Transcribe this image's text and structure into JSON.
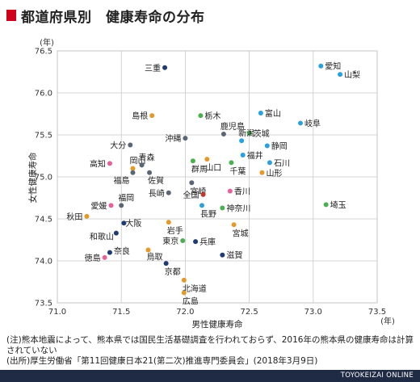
{
  "title": "都道府県別　健康寿命の分布",
  "accent_color": "#d0021b",
  "notes": {
    "line1": "(注)熊本地震によって、熊本県では国民生活基礎調査を行われておらず、2016年の熊本県の健康寿命は計算されていない",
    "line2": "(出所)厚生労働省「第11回健康日本21(第二次)推進専門委員会」(2018年3月9日)"
  },
  "footer": {
    "brand": "TOYOKEIZAI ONLINE",
    "bg_color": "#1f2a44"
  },
  "chart_data": {
    "type": "scatter",
    "title": "都道府県別　健康寿命の分布",
    "xlabel": "男性健康寿命",
    "ylabel": "女性健康寿命",
    "x_unit": "(年)",
    "y_unit": "(年)",
    "xlim": [
      71.0,
      73.5
    ],
    "ylim": [
      73.5,
      76.5
    ],
    "xticks": [
      "71.0",
      "71.5",
      "72.0",
      "72.5",
      "73.0",
      "73.5"
    ],
    "yticks": [
      "73.5",
      "74.0",
      "74.5",
      "75.0",
      "75.5",
      "76.0",
      "76.5"
    ],
    "grid": true,
    "points": [
      {
        "name": "三重",
        "x": 71.84,
        "y": 76.3,
        "color": "#1f3b73"
      },
      {
        "name": "愛知",
        "x": 73.06,
        "y": 76.32,
        "color": "#2aa1de"
      },
      {
        "name": "山梨",
        "x": 73.21,
        "y": 76.22,
        "color": "#2aa1de"
      },
      {
        "name": "富山",
        "x": 72.59,
        "y": 75.76,
        "color": "#2aa1de"
      },
      {
        "name": "島根",
        "x": 71.74,
        "y": 75.73,
        "color": "#e39a2b"
      },
      {
        "name": "栃木",
        "x": 72.12,
        "y": 75.73,
        "color": "#4caf50"
      },
      {
        "name": "岐阜",
        "x": 72.9,
        "y": 75.64,
        "color": "#2aa1de"
      },
      {
        "name": "茨城",
        "x": 72.5,
        "y": 75.52,
        "color": "#4caf50"
      },
      {
        "name": "鹿児島",
        "x": 72.3,
        "y": 75.51,
        "color": "#5a6673"
      },
      {
        "name": "沖縄",
        "x": 72.0,
        "y": 75.46,
        "color": "#5a6673"
      },
      {
        "name": "新潟",
        "x": 72.44,
        "y": 75.43,
        "color": "#2aa1de"
      },
      {
        "name": "大分",
        "x": 71.57,
        "y": 75.38,
        "color": "#5a6673"
      },
      {
        "name": "静岡",
        "x": 72.64,
        "y": 75.37,
        "color": "#2aa1de"
      },
      {
        "name": "福井",
        "x": 72.45,
        "y": 75.26,
        "color": "#2aa1de"
      },
      {
        "name": "山口",
        "x": 72.17,
        "y": 75.21,
        "color": "#e39a2b"
      },
      {
        "name": "群馬",
        "x": 72.06,
        "y": 75.19,
        "color": "#4caf50"
      },
      {
        "name": "石川",
        "x": 72.66,
        "y": 75.17,
        "color": "#2aa1de"
      },
      {
        "name": "高知",
        "x": 71.41,
        "y": 75.16,
        "color": "#e8609a"
      },
      {
        "name": "岡山",
        "x": 71.59,
        "y": 75.1,
        "color": "#e39a2b"
      },
      {
        "name": "青森",
        "x": 71.66,
        "y": 75.14,
        "color": "#5a6673"
      },
      {
        "name": "千葉",
        "x": 72.36,
        "y": 75.17,
        "color": "#4caf50"
      },
      {
        "name": "福島",
        "x": 71.59,
        "y": 75.05,
        "color": "#5a6673"
      },
      {
        "name": "佐賀",
        "x": 71.72,
        "y": 75.05,
        "color": "#5a6673"
      },
      {
        "name": "山形",
        "x": 72.6,
        "y": 75.05,
        "color": "#e39a2b"
      },
      {
        "name": "宮崎",
        "x": 72.05,
        "y": 74.93,
        "color": "#5a6673"
      },
      {
        "name": "香川",
        "x": 72.35,
        "y": 74.83,
        "color": "#e8609a"
      },
      {
        "name": "全国",
        "x": 72.14,
        "y": 74.79,
        "color": "#c0392b"
      },
      {
        "name": "長崎",
        "x": 71.87,
        "y": 74.81,
        "color": "#5a6673"
      },
      {
        "name": "愛媛",
        "x": 71.42,
        "y": 74.66,
        "color": "#e8609a"
      },
      {
        "name": "福岡",
        "x": 71.5,
        "y": 74.66,
        "color": "#5a6673"
      },
      {
        "name": "長野",
        "x": 72.13,
        "y": 74.66,
        "color": "#2aa1de"
      },
      {
        "name": "神奈川",
        "x": 72.29,
        "y": 74.63,
        "color": "#4caf50"
      },
      {
        "name": "埼玉",
        "x": 73.1,
        "y": 74.67,
        "color": "#4caf50"
      },
      {
        "name": "秋田",
        "x": 71.23,
        "y": 74.53,
        "color": "#e39a2b"
      },
      {
        "name": "大阪",
        "x": 71.52,
        "y": 74.45,
        "color": "#1f3b73"
      },
      {
        "name": "岩手",
        "x": 71.87,
        "y": 74.46,
        "color": "#e39a2b"
      },
      {
        "name": "宮城",
        "x": 72.38,
        "y": 74.43,
        "color": "#e39a2b"
      },
      {
        "name": "和歌山",
        "x": 71.46,
        "y": 74.33,
        "color": "#1f3b73"
      },
      {
        "name": "東京",
        "x": 71.98,
        "y": 74.24,
        "color": "#4caf50"
      },
      {
        "name": "兵庫",
        "x": 72.08,
        "y": 74.23,
        "color": "#1f3b73"
      },
      {
        "name": "奈良",
        "x": 71.41,
        "y": 74.1,
        "color": "#1f3b73"
      },
      {
        "name": "鳥取",
        "x": 71.71,
        "y": 74.13,
        "color": "#e39a2b"
      },
      {
        "name": "滋賀",
        "x": 72.29,
        "y": 74.07,
        "color": "#1f3b73"
      },
      {
        "name": "徳島",
        "x": 71.37,
        "y": 74.04,
        "color": "#e8609a"
      },
      {
        "name": "京都",
        "x": 71.85,
        "y": 73.97,
        "color": "#1f3b73"
      },
      {
        "name": "北海道",
        "x": 71.99,
        "y": 73.77,
        "color": "#e39a2b"
      },
      {
        "name": "広島",
        "x": 71.99,
        "y": 73.62,
        "color": "#e39a2b"
      }
    ]
  }
}
